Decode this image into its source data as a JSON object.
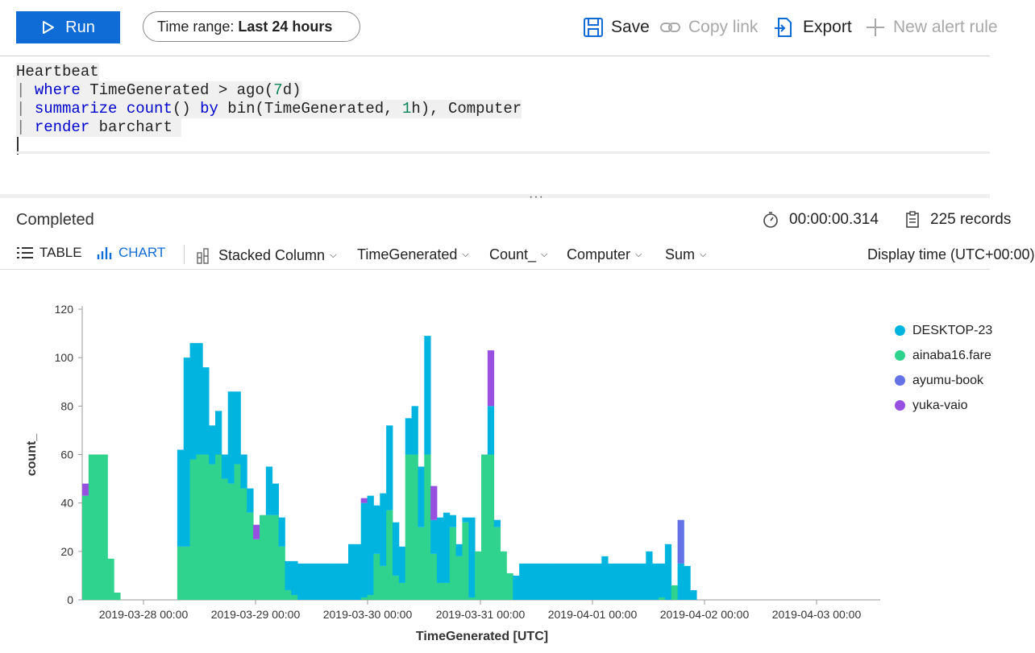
{
  "toolbar": {
    "run_label": "Run",
    "time_range_prefix": "Time range:",
    "time_range_value": "Last 24 hours",
    "save_label": "Save",
    "copy_link_label": "Copy link",
    "export_label": "Export",
    "new_alert_label": "New alert rule"
  },
  "query": {
    "line1": "Heartbeat",
    "line2_kw": "where",
    "line2_rest": " TimeGenerated > ago(",
    "line2_num": "7",
    "line2_end": "d)",
    "line3_kw1": "summarize",
    "line3_kw2": "count",
    "line3_mid": "() ",
    "line3_kw3": "by",
    "line3_rest": " bin(TimeGenerated, ",
    "line3_num": "1",
    "line3_end": "h), Computer",
    "line4_kw": "render",
    "line4_rest": " barchart "
  },
  "status": {
    "state": "Completed",
    "duration": "00:00:00.314",
    "records": "225 records"
  },
  "result_tabs": {
    "table": "TABLE",
    "chart": "CHART"
  },
  "chart_options": {
    "chart_type": "Stacked Column",
    "x_column": "TimeGenerated",
    "y_column": "Count_",
    "split_by": "Computer",
    "aggregation": "Sum",
    "display_time": "Display time (UTC+00:00)"
  },
  "chart_data": {
    "type": "bar",
    "stacked": true,
    "xlabel": "TimeGenerated [UTC]",
    "ylabel": "count_",
    "ylim": [
      0,
      120
    ],
    "yticks": [
      0,
      20,
      40,
      60,
      80,
      100,
      120
    ],
    "x_tick_labels": [
      "2019-03-28 00:00",
      "2019-03-29 00:00",
      "2019-03-30 00:00",
      "2019-03-31 00:00",
      "2019-04-01 00:00",
      "2019-04-02 00:00",
      "2019-04-03 00:00"
    ],
    "x_start": "2019-03-27 06:00",
    "bin": "1h",
    "series": [
      {
        "name": "DESKTOP-23",
        "color": "#00b4e0"
      },
      {
        "name": "ainaba16.fare",
        "color": "#2fd38e"
      },
      {
        "name": "ayumu-book",
        "color": "#6472e6"
      },
      {
        "name": "yuka-vaio",
        "color": "#9850e0"
      }
    ],
    "bars": [
      [
        0,
        43,
        0,
        5
      ],
      [
        0,
        60,
        0,
        0
      ],
      [
        0,
        60,
        0,
        0
      ],
      [
        0,
        60,
        0,
        0
      ],
      [
        0,
        17,
        0,
        0
      ],
      [
        0,
        3,
        0,
        0
      ],
      [
        0,
        0,
        0,
        0
      ],
      [
        0,
        0,
        0,
        0
      ],
      [
        0,
        0,
        0,
        0
      ],
      [
        0,
        0,
        0,
        0
      ],
      [
        0,
        0,
        0,
        0
      ],
      [
        0,
        0,
        0,
        0
      ],
      [
        0,
        0,
        0,
        0
      ],
      [
        0,
        0,
        0,
        0
      ],
      [
        0,
        0,
        0,
        0
      ],
      [
        40,
        22,
        0,
        0
      ],
      [
        78,
        22,
        0,
        0
      ],
      [
        48,
        58,
        0,
        0
      ],
      [
        46,
        60,
        0,
        0
      ],
      [
        36,
        60,
        0,
        0
      ],
      [
        16,
        56,
        0,
        0
      ],
      [
        18,
        60,
        0,
        0
      ],
      [
        10,
        50,
        0,
        0
      ],
      [
        38,
        48,
        0,
        0
      ],
      [
        30,
        56,
        0,
        0
      ],
      [
        14,
        46,
        0,
        0
      ],
      [
        10,
        36,
        0,
        0
      ],
      [
        0,
        25,
        0,
        6
      ],
      [
        0,
        35,
        0,
        0
      ],
      [
        20,
        35,
        0,
        0
      ],
      [
        13,
        35,
        0,
        0
      ],
      [
        12,
        22,
        0,
        0
      ],
      [
        12,
        4,
        0,
        0
      ],
      [
        14,
        2,
        0,
        0
      ],
      [
        15,
        0,
        0,
        0
      ],
      [
        15,
        0,
        0,
        0
      ],
      [
        15,
        0,
        0,
        0
      ],
      [
        15,
        0,
        0,
        0
      ],
      [
        15,
        0,
        0,
        0
      ],
      [
        15,
        0,
        0,
        0
      ],
      [
        15,
        0,
        0,
        0
      ],
      [
        15,
        0,
        0,
        0
      ],
      [
        23,
        0,
        0,
        0
      ],
      [
        23,
        0,
        0,
        0
      ],
      [
        39,
        1,
        0,
        2
      ],
      [
        41,
        2,
        0,
        0
      ],
      [
        20,
        19,
        0,
        0
      ],
      [
        30,
        14,
        0,
        0
      ],
      [
        35,
        37,
        0,
        0
      ],
      [
        22,
        10,
        0,
        0
      ],
      [
        15,
        7,
        0,
        0
      ],
      [
        15,
        60,
        0,
        0
      ],
      [
        20,
        60,
        0,
        0
      ],
      [
        25,
        30,
        0,
        0
      ],
      [
        49,
        60,
        0,
        0
      ],
      [
        14,
        19,
        0,
        14
      ],
      [
        27,
        7,
        0,
        0
      ],
      [
        29,
        7,
        0,
        0
      ],
      [
        5,
        30,
        0,
        0
      ],
      [
        5,
        18,
        0,
        0
      ],
      [
        2,
        32,
        0,
        0
      ],
      [
        33,
        1,
        0,
        0
      ],
      [
        0,
        20,
        0,
        0
      ],
      [
        0,
        60,
        0,
        0
      ],
      [
        20,
        60,
        0,
        23
      ],
      [
        3,
        30,
        0,
        0
      ],
      [
        0,
        20,
        0,
        0
      ],
      [
        0,
        11,
        0,
        0
      ],
      [
        10,
        0,
        0,
        0
      ],
      [
        15,
        0,
        0,
        0
      ],
      [
        15,
        0,
        0,
        0
      ],
      [
        15,
        0,
        0,
        0
      ],
      [
        15,
        0,
        0,
        0
      ],
      [
        15,
        0,
        0,
        0
      ],
      [
        15,
        0,
        0,
        0
      ],
      [
        15,
        0,
        0,
        0
      ],
      [
        15,
        0,
        0,
        0
      ],
      [
        15,
        0,
        0,
        0
      ],
      [
        15,
        0,
        0,
        0
      ],
      [
        15,
        0,
        0,
        0
      ],
      [
        15,
        0,
        0,
        0
      ],
      [
        15,
        0,
        0,
        0
      ],
      [
        18,
        0,
        0,
        0
      ],
      [
        15,
        0,
        0,
        0
      ],
      [
        15,
        0,
        0,
        0
      ],
      [
        15,
        0,
        0,
        0
      ],
      [
        15,
        0,
        0,
        0
      ],
      [
        15,
        0,
        0,
        0
      ],
      [
        15,
        0,
        0,
        0
      ],
      [
        20,
        0,
        0,
        0
      ],
      [
        15,
        0,
        0,
        0
      ],
      [
        14,
        1,
        0,
        0
      ],
      [
        23,
        0,
        0,
        0
      ],
      [
        0,
        6,
        0,
        0
      ],
      [
        15,
        0,
        18,
        0
      ],
      [
        14,
        0,
        0,
        0
      ],
      [
        4,
        0,
        0,
        0
      ],
      [
        0,
        0,
        0,
        0
      ],
      [
        0,
        0,
        0,
        0
      ],
      [
        0,
        0,
        0,
        0
      ],
      [
        0,
        0,
        0,
        0
      ],
      [
        0,
        0,
        0,
        0
      ],
      [
        0,
        0,
        0,
        0
      ],
      [
        0,
        0,
        0,
        0
      ],
      [
        0,
        0,
        0,
        0
      ],
      [
        0,
        0,
        0,
        0
      ],
      [
        0,
        0,
        0,
        0
      ],
      [
        0,
        0,
        0,
        0
      ],
      [
        0,
        0,
        0,
        0
      ],
      [
        0,
        0,
        0,
        0
      ],
      [
        0,
        0,
        0,
        0
      ],
      [
        0,
        0,
        0,
        0
      ],
      [
        0,
        0,
        0,
        0
      ],
      [
        0,
        0,
        0,
        0
      ],
      [
        0,
        0,
        0,
        0
      ],
      [
        0,
        0,
        0,
        0
      ],
      [
        0,
        0,
        0,
        0
      ],
      [
        0,
        0,
        0,
        0
      ],
      [
        0,
        0,
        0,
        0
      ],
      [
        0,
        0,
        0,
        0
      ],
      [
        0,
        0,
        0,
        0
      ],
      [
        0,
        0,
        0,
        0
      ],
      [
        0,
        0,
        0,
        0
      ],
      [
        0,
        0,
        0,
        0
      ],
      [
        0,
        0,
        0,
        0
      ],
      [
        0,
        0,
        0,
        0
      ]
    ]
  }
}
